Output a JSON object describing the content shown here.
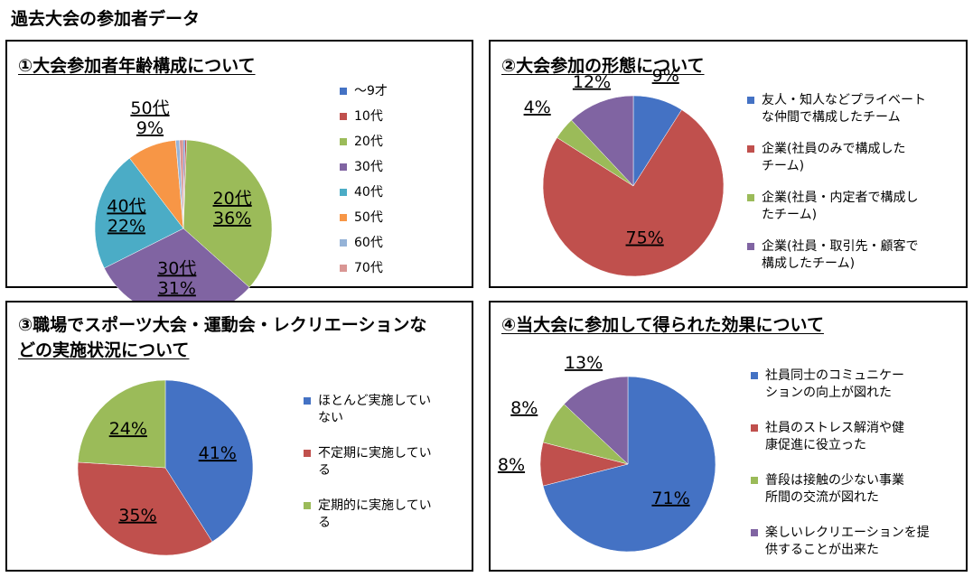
{
  "page": {
    "title": "過去大会の参加者データ"
  },
  "chart_data": [
    {
      "type": "pie",
      "title": "①大会参加者年齢構成について",
      "legend_position": "right",
      "series": [
        {
          "categories": [
            "～9才",
            "10代",
            "20代",
            "30代",
            "40代",
            "50代",
            "60代",
            "70代"
          ],
          "values": [
            0.3,
            0.3,
            36,
            31,
            22,
            9,
            0.7,
            0.7
          ],
          "labels": [
            "",
            "",
            "20代\n36%",
            "30代\n31%",
            "40代\n22%",
            "50代\n9%",
            "",
            ""
          ],
          "colors": [
            "#4472C4",
            "#C0504D",
            "#9BBB59",
            "#8064A2",
            "#4BACC6",
            "#F79646",
            "#95B3D7",
            "#D99694"
          ]
        }
      ]
    },
    {
      "type": "pie",
      "title": "②大会参加の形態について",
      "legend_position": "right",
      "series": [
        {
          "categories": [
            "友人・知人などプライベートな仲間で構成したチーム",
            "企業(社員のみで構成したチーム)",
            "企業(社員・内定者で構成したチーム)",
            "企業(社員・取引先・顧客で構成したチーム)"
          ],
          "values": [
            9,
            75,
            4,
            12
          ],
          "labels": [
            "9%",
            "75%",
            "4%",
            "12%"
          ],
          "colors": [
            "#4472C4",
            "#C0504D",
            "#9BBB59",
            "#8064A2"
          ]
        }
      ]
    },
    {
      "type": "pie",
      "title": "③職場でスポーツ大会・運動会・レクリエーションなどの実施状況について",
      "legend_position": "right",
      "series": [
        {
          "categories": [
            "ほとんど実施していない",
            "不定期に実施している",
            "定期的に実施している"
          ],
          "values": [
            41,
            35,
            24
          ],
          "labels": [
            "41%",
            "35%",
            "24%"
          ],
          "colors": [
            "#4472C4",
            "#C0504D",
            "#9BBB59"
          ]
        }
      ]
    },
    {
      "type": "pie",
      "title": "④当大会に参加して得られた効果について",
      "legend_position": "right",
      "series": [
        {
          "categories": [
            "社員同士のコミュニケーションの向上が図れた",
            "社員のストレス解消や健康促進に役立った",
            "普段は接触の少ない事業所間の交流が図れた",
            "楽しいレクリエーションを提供することが出来た"
          ],
          "values": [
            71,
            8,
            8,
            13
          ],
          "labels": [
            "71%",
            "8%",
            "8%",
            "13%"
          ],
          "colors": [
            "#4472C4",
            "#C0504D",
            "#9BBB59",
            "#8064A2"
          ]
        }
      ]
    }
  ],
  "legends": [
    [
      "～9才",
      "10代",
      "20代",
      "30代",
      "40代",
      "50代",
      "60代",
      "70代"
    ],
    [
      "友人・知人などプライベート\nな仲間で構成したチーム",
      "企業(社員のみで構成した\nチーム)",
      "企業(社員・内定者で構成し\nたチーム)",
      "企業(社員・取引先・顧客で\n構成したチーム)"
    ],
    [
      "ほとんど実施してい\nない",
      "不定期に実施してい\nる",
      "定期的に実施してい\nる"
    ],
    [
      "社員同士のコミュニケー\nションの向上が図れた",
      "社員のストレス解消や健\n康促進に役立った",
      "普段は接触の少ない事業\n所間の交流が図れた",
      "楽しいレクリエーションを提\n供することが出来た"
    ]
  ],
  "titles": {
    "c1": "①大会参加者年齢構成について",
    "c2": "②大会参加の形態について",
    "c3_line1": "③職場でスポーツ大会・運動会・レクリエーションな",
    "c3_line2": "どの実施状況について",
    "c4": "④当大会に参加して得られた効果について"
  }
}
